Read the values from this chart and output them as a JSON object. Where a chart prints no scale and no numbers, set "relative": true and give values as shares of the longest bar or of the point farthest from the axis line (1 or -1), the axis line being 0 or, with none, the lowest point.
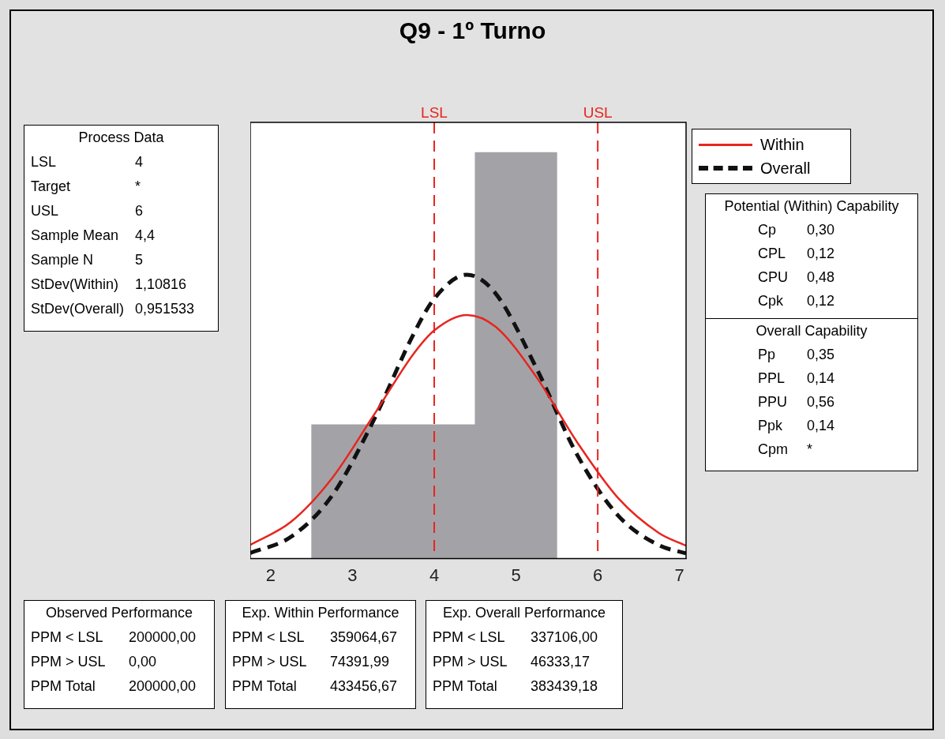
{
  "chart_data": {
    "type": "histogram",
    "title": "Q9 - 1º Turno",
    "relative": true,
    "bins": [
      2.5,
      3.5,
      4.5,
      5.5
    ],
    "values": [
      0.33,
      0.33,
      1
    ],
    "color": "#a3a3a7",
    "series": [
      {
        "type": "line",
        "name": "Within",
        "color": "#e8251f",
        "line_style": "solid",
        "x": [
          1.75,
          2.25,
          2.75,
          3.25,
          3.75,
          4.0,
          4.4,
          4.75,
          5.25,
          5.75,
          6.25,
          6.75,
          7.08
        ],
        "values": [
          0.034,
          0.091,
          0.198,
          0.35,
          0.505,
          0.562,
          0.6,
          0.571,
          0.447,
          0.286,
          0.149,
          0.063,
          0.032
        ]
      },
      {
        "type": "line",
        "name": "Overall",
        "color": "#111111",
        "line_style": "dashed",
        "x": [
          1.75,
          2.25,
          2.75,
          3.25,
          3.75,
          4.0,
          4.4,
          4.75,
          5.25,
          5.75,
          6.25,
          6.75,
          7.08
        ],
        "values": [
          0.014,
          0.054,
          0.155,
          0.337,
          0.554,
          0.64,
          0.699,
          0.653,
          0.469,
          0.255,
          0.106,
          0.033,
          0.013
        ]
      }
    ],
    "marker": "none",
    "legend": "top right",
    "tick_labels": "x",
    "xlim": [
      1.75,
      7.08
    ],
    "xticks": [
      2,
      3,
      4,
      5,
      6,
      7
    ],
    "ref_lines": [
      {
        "axis": "x",
        "value": 4,
        "label": "LSL",
        "color": "#e8251f",
        "line_style": "dashed"
      },
      {
        "axis": "x",
        "value": 6,
        "label": "USL",
        "color": "#e8251f",
        "line_style": "dashed"
      }
    ],
    "annotations": [
      "Process Data",
      "LSL",
      "4",
      "Target",
      "*",
      "USL",
      "6",
      "Sample Mean",
      "4,4",
      "Sample N",
      "5",
      "StDev(Within)",
      "1,10816",
      "StDev(Overall)",
      "0,951533",
      "Potential (Within) Capability",
      "Cp",
      "0,30",
      "CPL",
      "0,12",
      "CPU",
      "0,48",
      "Cpk",
      "0,12",
      "Overall Capability",
      "Pp",
      "0,35",
      "PPL",
      "0,14",
      "PPU",
      "0,56",
      "Ppk",
      "0,14",
      "Cpm",
      "*",
      "Observed Performance",
      "PPM < LSL",
      "200000,00",
      "PPM > USL",
      "0,00",
      "PPM Total",
      "200000,00",
      "Exp. Within Performance",
      "PPM < LSL",
      "359064,67",
      "PPM > USL",
      "74391,99",
      "PPM Total",
      "433456,67",
      "Exp. Overall Performance",
      "PPM < LSL",
      "337106,00",
      "PPM > USL",
      "46333,17",
      "PPM Total",
      "383439,18"
    ]
  }
}
